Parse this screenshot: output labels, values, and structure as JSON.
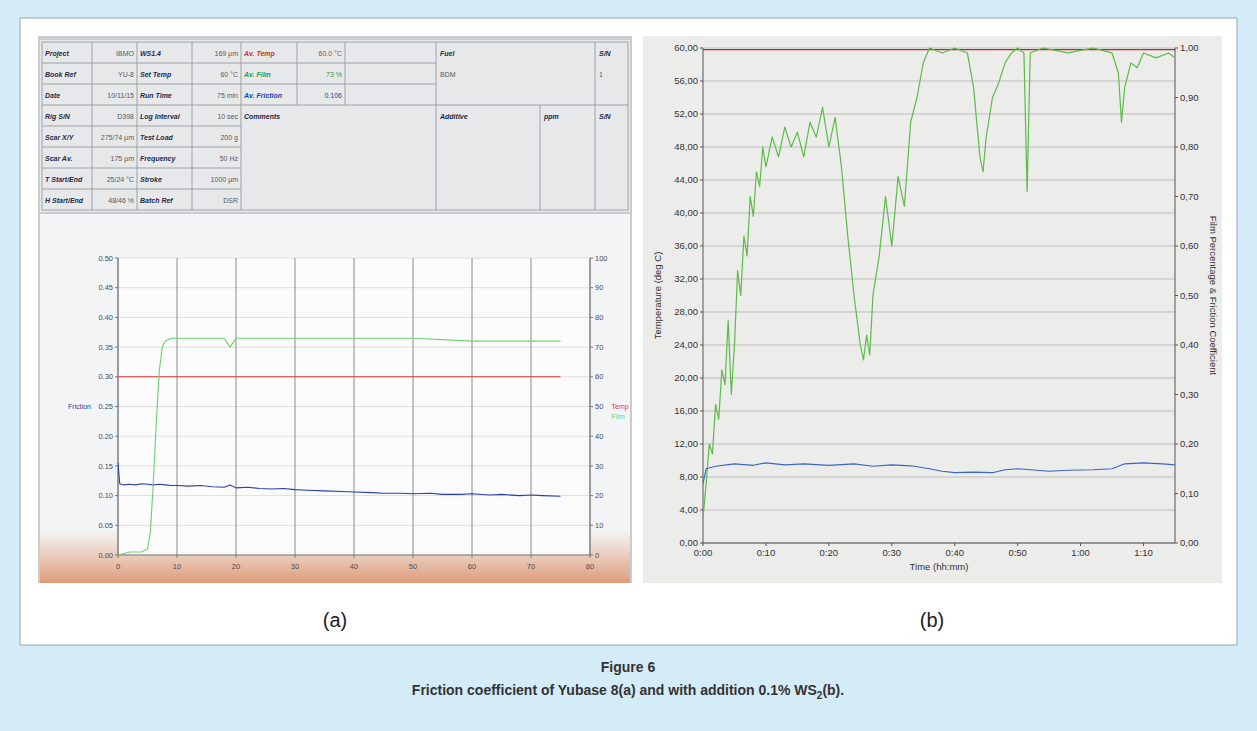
{
  "chart_data": [
    {
      "type": "line",
      "label": "(a)",
      "grid": true,
      "xlim": [
        0,
        80
      ],
      "xticks": [
        0,
        10,
        20,
        30,
        40,
        50,
        60,
        70,
        80
      ],
      "ylim": [
        0,
        0.5
      ],
      "yticks": [
        {
          "value": 0,
          "label": "0.00"
        },
        {
          "value": 0.05,
          "label": "0.05"
        },
        {
          "value": 0.1,
          "label": "0.10"
        },
        {
          "value": 0.15,
          "label": "0.15"
        },
        {
          "value": 0.2,
          "label": "0.20"
        },
        {
          "value": 0.25,
          "label": "0.25"
        },
        {
          "value": 0.3,
          "label": "0.30"
        },
        {
          "value": 0.35,
          "label": "0.35"
        },
        {
          "value": 0.4,
          "label": "0.40"
        },
        {
          "value": 0.45,
          "label": "0.45"
        },
        {
          "value": 0.5,
          "label": "0.50"
        }
      ],
      "y2lim": [
        0,
        100
      ],
      "y2ticks": [
        0,
        10,
        20,
        30,
        40,
        50,
        60,
        70,
        80,
        90,
        100
      ],
      "series": [
        {
          "name": "Friction",
          "color": "#2b3fa8",
          "x": [
            0,
            0.3,
            1,
            2,
            3,
            4,
            5,
            6,
            7,
            8,
            9,
            10,
            12,
            14,
            16,
            18,
            19,
            20,
            22,
            24,
            26,
            28,
            30,
            32,
            35,
            38,
            40,
            43,
            45,
            48,
            50,
            53,
            55,
            58,
            60,
            63,
            65,
            68,
            70,
            72,
            75
          ],
          "values": [
            0.155,
            0.12,
            0.118,
            0.119,
            0.118,
            0.12,
            0.119,
            0.118,
            0.119,
            0.118,
            0.117,
            0.117,
            0.116,
            0.117,
            0.115,
            0.114,
            0.118,
            0.113,
            0.114,
            0.112,
            0.111,
            0.112,
            0.11,
            0.109,
            0.108,
            0.107,
            0.106,
            0.105,
            0.104,
            0.104,
            0.103,
            0.104,
            0.102,
            0.102,
            0.103,
            0.101,
            0.102,
            0.1,
            0.101,
            0.1,
            0.099
          ]
        },
        {
          "name": "Temp",
          "color": "#e03a3a",
          "axis": "y2",
          "x": [
            0,
            75
          ],
          "values": [
            60,
            60
          ]
        },
        {
          "name": "Film",
          "color": "#6fd06f",
          "axis": "y2",
          "x": [
            0,
            2,
            4,
            5,
            5.5,
            6,
            6.5,
            7,
            7.5,
            8,
            9,
            10,
            12,
            15,
            18,
            19,
            20,
            25,
            30,
            40,
            50,
            60,
            70,
            75
          ],
          "values": [
            0,
            1,
            1,
            2,
            8,
            25,
            45,
            62,
            70,
            72,
            73,
            73,
            73,
            73,
            73,
            70,
            73,
            73,
            73,
            73,
            73,
            72,
            72,
            72
          ]
        }
      ]
    },
    {
      "type": "line",
      "label": "(b)",
      "grid": true,
      "xlabel": "Time (hh:mm)",
      "ylabel": "Temperature (deg C)",
      "y2label": "Film Percentage & Friction Coefficient",
      "xlim": [
        0,
        75
      ],
      "xticks": [
        {
          "value": 0,
          "label": "0:00"
        },
        {
          "value": 10,
          "label": "0:10"
        },
        {
          "value": 20,
          "label": "0:20"
        },
        {
          "value": 30,
          "label": "0:30"
        },
        {
          "value": 40,
          "label": "0:40"
        },
        {
          "value": 50,
          "label": "0:50"
        },
        {
          "value": 60,
          "label": "1:00"
        },
        {
          "value": 70,
          "label": "1:10"
        }
      ],
      "ylim": [
        0,
        60
      ],
      "yticks": [
        {
          "value": 0,
          "label": "0,00"
        },
        {
          "value": 4,
          "label": "4,00"
        },
        {
          "value": 8,
          "label": "8,00"
        },
        {
          "value": 12,
          "label": "12,00"
        },
        {
          "value": 16,
          "label": "16,00"
        },
        {
          "value": 20,
          "label": "20,00"
        },
        {
          "value": 24,
          "label": "24,00"
        },
        {
          "value": 28,
          "label": "28,00"
        },
        {
          "value": 32,
          "label": "32,00"
        },
        {
          "value": 36,
          "label": "36,00"
        },
        {
          "value": 40,
          "label": "40,00"
        },
        {
          "value": 44,
          "label": "44,00"
        },
        {
          "value": 48,
          "label": "48,00"
        },
        {
          "value": 52,
          "label": "52,00"
        },
        {
          "value": 56,
          "label": "56,00"
        },
        {
          "value": 60,
          "label": "60,00"
        }
      ],
      "y2lim": [
        0,
        1
      ],
      "y2ticks": [
        {
          "value": 0,
          "label": "0,00"
        },
        {
          "value": 0.1,
          "label": "0,10"
        },
        {
          "value": 0.2,
          "label": "0,20"
        },
        {
          "value": 0.3,
          "label": "0,30"
        },
        {
          "value": 0.4,
          "label": "0,40"
        },
        {
          "value": 0.5,
          "label": "0,50"
        },
        {
          "value": 0.6,
          "label": "0,60"
        },
        {
          "value": 0.7,
          "label": "0,70"
        },
        {
          "value": 0.8,
          "label": "0,80"
        },
        {
          "value": 0.9,
          "label": "0,90"
        },
        {
          "value": 1,
          "label": "1,00"
        }
      ],
      "series": [
        {
          "color": "#c0262c",
          "x": [
            0,
            75
          ],
          "values": [
            59.8,
            59.8
          ]
        },
        {
          "color": "#5dbb4a",
          "axis": "y2",
          "x": [
            0,
            0.5,
            1,
            1.5,
            2,
            2.5,
            3,
            3.5,
            4,
            4.5,
            5,
            5.5,
            6,
            6.5,
            7,
            7.5,
            8,
            8.5,
            9,
            9.5,
            10,
            11,
            12,
            13,
            14,
            15,
            16,
            17,
            18,
            19,
            20,
            21,
            22,
            23,
            24,
            25,
            25.5,
            26,
            26.5,
            27,
            28,
            29,
            30,
            31,
            32,
            33,
            34,
            35,
            36,
            38,
            40,
            42,
            43,
            44,
            44.5,
            45,
            46,
            47,
            48,
            49,
            50,
            51,
            51.5,
            52,
            54,
            58,
            62,
            65,
            66,
            66.5,
            67,
            68,
            69,
            70,
            72,
            74,
            75
          ],
          "values": [
            0.05,
            0.12,
            0.2,
            0.18,
            0.28,
            0.25,
            0.35,
            0.32,
            0.45,
            0.3,
            0.4,
            0.55,
            0.5,
            0.62,
            0.58,
            0.7,
            0.66,
            0.75,
            0.72,
            0.8,
            0.76,
            0.82,
            0.78,
            0.84,
            0.8,
            0.83,
            0.78,
            0.85,
            0.82,
            0.88,
            0.8,
            0.86,
            0.76,
            0.62,
            0.5,
            0.4,
            0.37,
            0.42,
            0.38,
            0.5,
            0.58,
            0.7,
            0.6,
            0.74,
            0.68,
            0.85,
            0.9,
            0.97,
            1.0,
            0.99,
            1.0,
            0.99,
            0.92,
            0.78,
            0.75,
            0.82,
            0.9,
            0.93,
            0.97,
            0.99,
            1.0,
            0.99,
            0.71,
            0.99,
            1.0,
            0.99,
            1.0,
            0.99,
            0.95,
            0.85,
            0.92,
            0.97,
            0.96,
            0.99,
            0.98,
            0.99,
            0.98
          ]
        },
        {
          "color": "#3a64c8",
          "axis": "y2",
          "x": [
            0,
            0.5,
            2,
            5,
            8,
            10,
            13,
            16,
            20,
            24,
            27,
            30,
            33,
            36,
            38,
            40,
            43,
            46,
            48,
            50,
            52,
            55,
            58,
            62,
            65,
            67,
            70,
            73,
            75
          ],
          "values": [
            0.12,
            0.15,
            0.155,
            0.16,
            0.157,
            0.162,
            0.158,
            0.16,
            0.157,
            0.16,
            0.155,
            0.158,
            0.156,
            0.15,
            0.145,
            0.142,
            0.143,
            0.142,
            0.148,
            0.15,
            0.148,
            0.145,
            0.147,
            0.148,
            0.15,
            0.16,
            0.162,
            0.16,
            0.158
          ]
        }
      ]
    }
  ],
  "screen_table": {
    "rows": [
      [
        "Project",
        "IBMO",
        "WS1.4",
        "169 µm",
        "Av. Temp",
        "60.0 °C"
      ],
      [
        "Book Ref",
        "YU-8",
        "Set Temp",
        "60 °C",
        "Av. Film",
        "73 %"
      ],
      [
        "Date",
        "10/11/15",
        "Run Time",
        "75 min",
        "Av. Friction",
        "0.106"
      ],
      [
        "Rig S/N",
        "D398",
        "Log Interval",
        "10 sec"
      ],
      [
        "Scar X/Y",
        "275/74 µm",
        "Test Load",
        "200 g"
      ],
      [
        "Scar Av.",
        "175 µm",
        "Frequency",
        "50 Hz"
      ],
      [
        "T Start/End",
        "25/24 °C",
        "Stroke",
        "1000 µm"
      ],
      [
        "H Start/End",
        "48/46 %",
        "Batch Ref",
        "DSR"
      ]
    ],
    "comments": "Comments",
    "fuel": {
      "label": "Fuel",
      "value": "BDM",
      "sn_label": "S/N",
      "sn_value": "1"
    },
    "additive": {
      "label": "Additive",
      "ppm": "ppm",
      "sn_label": "S/N"
    }
  },
  "caption": {
    "title": "Figure 6",
    "parts": [
      "Friction coefficient of Yubase 8(a) and with addition 0.1% WS",
      "2",
      "(b)."
    ]
  }
}
